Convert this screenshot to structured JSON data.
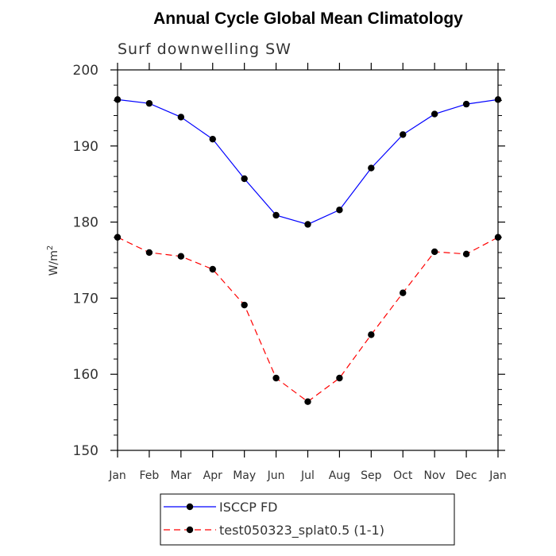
{
  "chart_data": {
    "type": "line",
    "title": "Annual Cycle Global Mean Climatology",
    "subtitle": "Surf downwelling SW",
    "ylabel": "W/m",
    "ylabel_sup": "2",
    "xlabel": "",
    "categories": [
      "Jan",
      "Feb",
      "Mar",
      "Apr",
      "May",
      "Jun",
      "Jul",
      "Aug",
      "Sep",
      "Oct",
      "Nov",
      "Dec",
      "Jan"
    ],
    "ylim": [
      150,
      200
    ],
    "yticks": [
      150,
      160,
      170,
      180,
      190,
      200
    ],
    "grid": false,
    "legend_position": "bottom",
    "series": [
      {
        "name": "ISCCP FD",
        "color": "#0000ff",
        "dash": "solid",
        "marker": "filled-circle",
        "values": [
          196.1,
          195.6,
          193.8,
          190.9,
          185.7,
          180.9,
          179.7,
          181.6,
          187.1,
          191.5,
          194.2,
          195.5,
          196.1
        ]
      },
      {
        "name": "test050323_splat0.5 (1-1)",
        "color": "#ff0000",
        "dash": "dashed",
        "marker": "filled-circle",
        "values": [
          178.0,
          176.0,
          175.5,
          173.8,
          169.1,
          159.5,
          156.4,
          159.5,
          165.2,
          170.7,
          176.1,
          175.8,
          178.0
        ]
      }
    ]
  }
}
